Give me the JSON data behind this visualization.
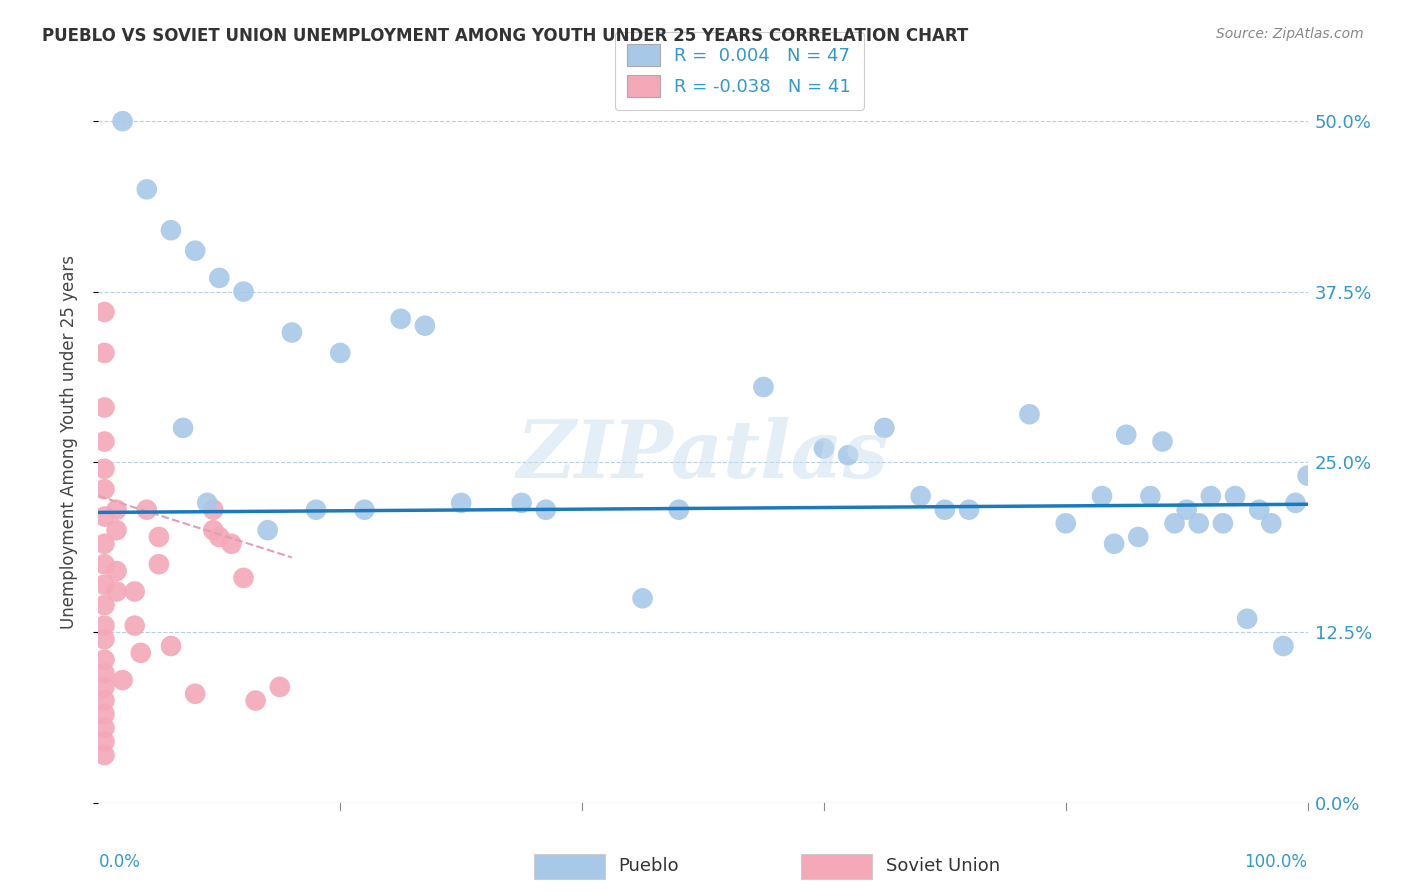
{
  "title": "PUEBLO VS SOVIET UNION UNEMPLOYMENT AMONG YOUTH UNDER 25 YEARS CORRELATION CHART",
  "source": "Source: ZipAtlas.com",
  "ylabel": "Unemployment Among Youth under 25 years",
  "ytick_values": [
    0.0,
    12.5,
    25.0,
    37.5,
    50.0
  ],
  "xlim": [
    0,
    100
  ],
  "ylim": [
    0,
    53
  ],
  "legend_pueblo_R": "0.004",
  "legend_pueblo_N": "47",
  "legend_soviet_R": "-0.038",
  "legend_soviet_N": "41",
  "pueblo_color": "#a8c8e8",
  "soviet_color": "#f4a8b8",
  "pueblo_line_color": "#1a7abf",
  "soviet_line_color": "#e0a0b0",
  "background_color": "#ffffff",
  "grid_color": "#b8cfe0",
  "watermark": "ZIPatlas",
  "pueblo_scatter_x": [
    2,
    4,
    6,
    8,
    10,
    12,
    16,
    20,
    25,
    27,
    35,
    37,
    48,
    55,
    60,
    62,
    65,
    68,
    72,
    77,
    80,
    83,
    85,
    87,
    88,
    89,
    90,
    91,
    92,
    93,
    94,
    95,
    96,
    97,
    98,
    99,
    100,
    7,
    9,
    14,
    18,
    22,
    30,
    45,
    70,
    84,
    86
  ],
  "pueblo_scatter_y": [
    50.0,
    45.0,
    42.0,
    40.5,
    38.5,
    37.5,
    34.5,
    33.0,
    35.5,
    35.0,
    22.0,
    21.5,
    21.5,
    30.5,
    26.0,
    25.5,
    27.5,
    22.5,
    21.5,
    28.5,
    20.5,
    22.5,
    27.0,
    22.5,
    26.5,
    20.5,
    21.5,
    20.5,
    22.5,
    20.5,
    22.5,
    13.5,
    21.5,
    20.5,
    11.5,
    22.0,
    24.0,
    27.5,
    22.0,
    20.0,
    21.5,
    21.5,
    22.0,
    15.0,
    21.5,
    19.0,
    19.5
  ],
  "soviet_scatter_x": [
    0.5,
    0.5,
    0.5,
    0.5,
    0.5,
    0.5,
    0.5,
    0.5,
    0.5,
    0.5,
    0.5,
    0.5,
    0.5,
    0.5,
    0.5,
    0.5,
    0.5,
    0.5,
    0.5,
    0.5,
    0.5,
    1.5,
    1.5,
    1.5,
    1.5,
    2.0,
    3.0,
    3.0,
    3.5,
    4.0,
    5.0,
    5.0,
    6.0,
    8.0,
    9.5,
    9.5,
    10.0,
    11.0,
    12.0,
    13.0,
    15.0
  ],
  "soviet_scatter_y": [
    36.0,
    33.0,
    29.0,
    26.5,
    24.5,
    23.0,
    21.0,
    19.0,
    17.5,
    16.0,
    14.5,
    13.0,
    12.0,
    10.5,
    9.5,
    8.5,
    7.5,
    6.5,
    5.5,
    4.5,
    3.5,
    21.5,
    20.0,
    17.0,
    15.5,
    9.0,
    15.5,
    13.0,
    11.0,
    21.5,
    19.5,
    17.5,
    11.5,
    8.0,
    21.5,
    20.0,
    19.5,
    19.0,
    16.5,
    7.5,
    8.5
  ],
  "pueblo_trend_x": [
    0,
    100
  ],
  "pueblo_trend_y": [
    21.3,
    21.9
  ],
  "soviet_trend_x": [
    0,
    16
  ],
  "soviet_trend_y": [
    22.5,
    18.0
  ]
}
